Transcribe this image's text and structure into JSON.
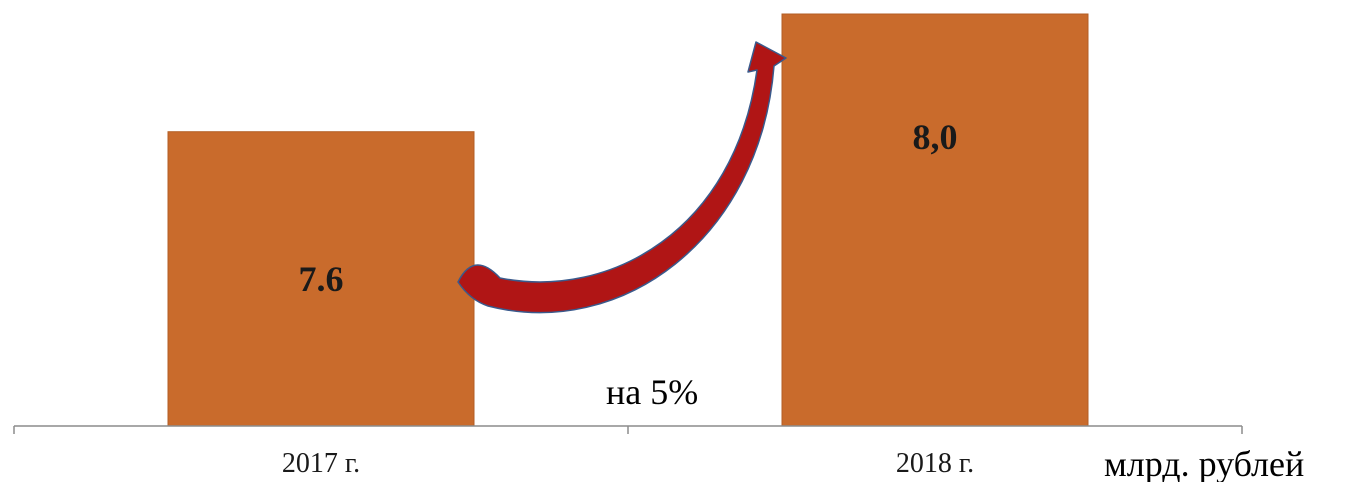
{
  "colors": {
    "bar": "#c96b2c",
    "bar_edge": "#b35e24",
    "axis": "#8c8c8c",
    "arrow_fill": "#b01515",
    "arrow_edge": "#3a5a8c"
  },
  "growth_label": "на 5%",
  "unit_label": "млрд. рублей",
  "chart_data": {
    "type": "bar",
    "categories": [
      "2017 г.",
      "2018 г."
    ],
    "values": [
      7.6,
      8.0
    ],
    "data_labels": [
      "7.6",
      "8,0"
    ],
    "ylim": [
      6.6,
      8.0
    ],
    "grid": false,
    "legend": "none",
    "annotations": [
      "на 5%",
      "млрд. рублей"
    ]
  }
}
